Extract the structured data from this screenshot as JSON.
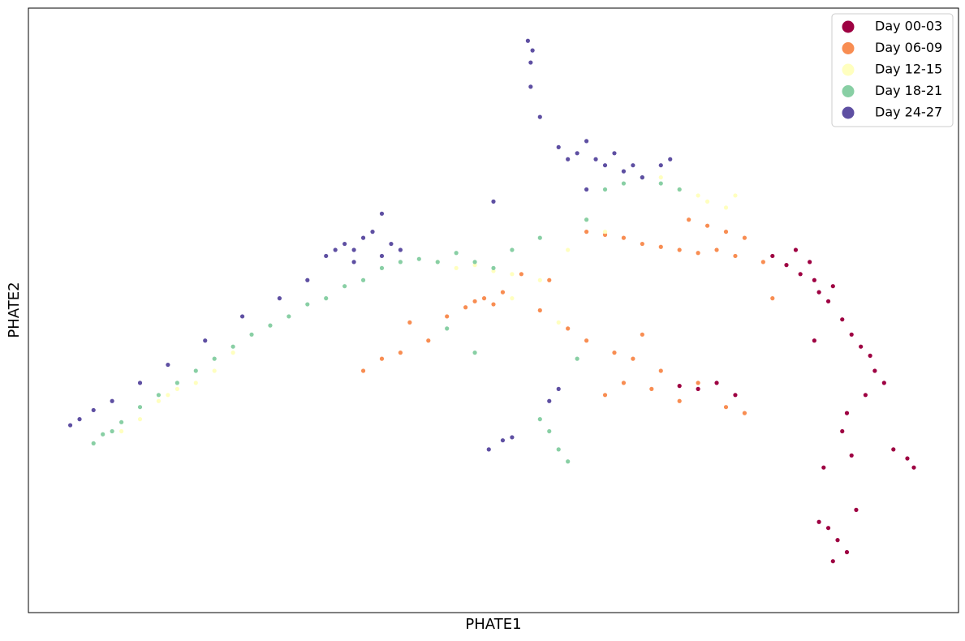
{
  "chart_data": {
    "type": "scatter",
    "xlabel": "PHATE1",
    "ylabel": "PHATE2",
    "xlim": [
      0,
      100
    ],
    "ylim": [
      0,
      100
    ],
    "legend": "upper right",
    "series": [
      {
        "name": "Day 00-03",
        "color": "#9e0142",
        "x": [
          80,
          81.5,
          82.5,
          83,
          84,
          84.5,
          85,
          86,
          86.5,
          87.5,
          88.5,
          89.5,
          90.5,
          91,
          92,
          90,
          88,
          85.5,
          86,
          87,
          88,
          85,
          86.5,
          89,
          93,
          94.5,
          95.2,
          72,
          74,
          70,
          76,
          84.5,
          87.5,
          88.5
        ],
        "y": [
          59,
          57.5,
          60,
          56,
          58,
          55,
          53,
          51.5,
          54,
          48.5,
          46,
          44,
          42.5,
          40,
          38,
          36,
          33,
          24,
          14,
          12,
          10,
          15,
          8.5,
          17,
          27,
          25.5,
          24,
          37,
          38,
          37.5,
          36,
          45,
          30,
          26
        ]
      },
      {
        "name": "Day 06-09",
        "color": "#f88d52",
        "x": [
          60,
          62,
          64,
          66,
          68,
          70,
          72,
          74,
          76,
          73,
          75,
          77,
          71,
          48,
          49,
          50,
          47,
          51,
          45,
          41,
          43,
          38,
          55,
          58,
          60,
          63,
          66,
          62,
          64,
          67,
          70,
          72,
          75,
          77,
          65,
          68,
          53,
          56,
          36,
          40,
          79,
          80
        ],
        "y": [
          63,
          62.5,
          62,
          61,
          60.5,
          60,
          59.5,
          60,
          59,
          64,
          63,
          62,
          65,
          51.5,
          52,
          51,
          50.5,
          53,
          49,
          48,
          45,
          42,
          50,
          47,
          45,
          43,
          46,
          36,
          38,
          37,
          35,
          38,
          34,
          33,
          42,
          40,
          56,
          55,
          40,
          43,
          58,
          52
        ]
      },
      {
        "name": "Day 12-15",
        "color": "#ffffbf",
        "x": [
          10,
          12,
          14,
          16,
          18,
          20,
          22,
          15,
          44,
          46,
          48,
          50,
          52,
          55,
          58,
          60,
          62,
          68,
          70,
          72,
          73,
          75,
          76,
          57,
          52
        ],
        "y": [
          30,
          32,
          35,
          37,
          38,
          40,
          43,
          36,
          58,
          57,
          57.5,
          56.5,
          56,
          55,
          60,
          65,
          63,
          72,
          70,
          69,
          68,
          67,
          69,
          48,
          52
        ]
      },
      {
        "name": "Day 18-21",
        "color": "#88cfa4",
        "x": [
          7,
          8,
          9,
          10,
          12,
          14,
          16,
          18,
          20,
          22,
          24,
          26,
          28,
          30,
          32,
          34,
          36,
          38,
          40,
          42,
          44,
          46,
          48,
          50,
          52,
          55,
          60,
          62,
          64,
          66,
          68,
          70,
          56,
          57,
          55,
          58,
          59,
          48,
          45
        ],
        "y": [
          28,
          29.5,
          30,
          31.5,
          34,
          36,
          38,
          40,
          42,
          44,
          46,
          47.5,
          49,
          51,
          52,
          54,
          55,
          57,
          58,
          58.5,
          58,
          59.5,
          58,
          57,
          60,
          62,
          65,
          70,
          71,
          72,
          71,
          70,
          30,
          27,
          32,
          25,
          42,
          43,
          47
        ]
      },
      {
        "name": "Day 24-27",
        "color": "#5e4fa2",
        "x": [
          4.5,
          5.5,
          7,
          9,
          12,
          15,
          19,
          23,
          27,
          30,
          32,
          33,
          34,
          35,
          36,
          37,
          38,
          39,
          40,
          38,
          35,
          57,
          58,
          59,
          60,
          61,
          62,
          63,
          64,
          65,
          66,
          68,
          69,
          60,
          55,
          54,
          54,
          53.7,
          54.2,
          49.5,
          51,
          52,
          56,
          57,
          50
        ],
        "y": [
          31,
          32,
          33.5,
          35,
          38,
          41,
          45,
          49,
          52,
          55,
          59,
          60,
          61,
          60,
          62,
          63,
          59,
          61,
          60,
          66,
          58,
          77,
          75,
          76,
          78,
          75,
          74,
          76,
          73,
          74,
          72,
          74,
          75,
          70,
          82,
          87,
          91,
          94.6,
          93,
          27,
          28.5,
          29,
          35,
          37,
          68
        ]
      }
    ]
  }
}
